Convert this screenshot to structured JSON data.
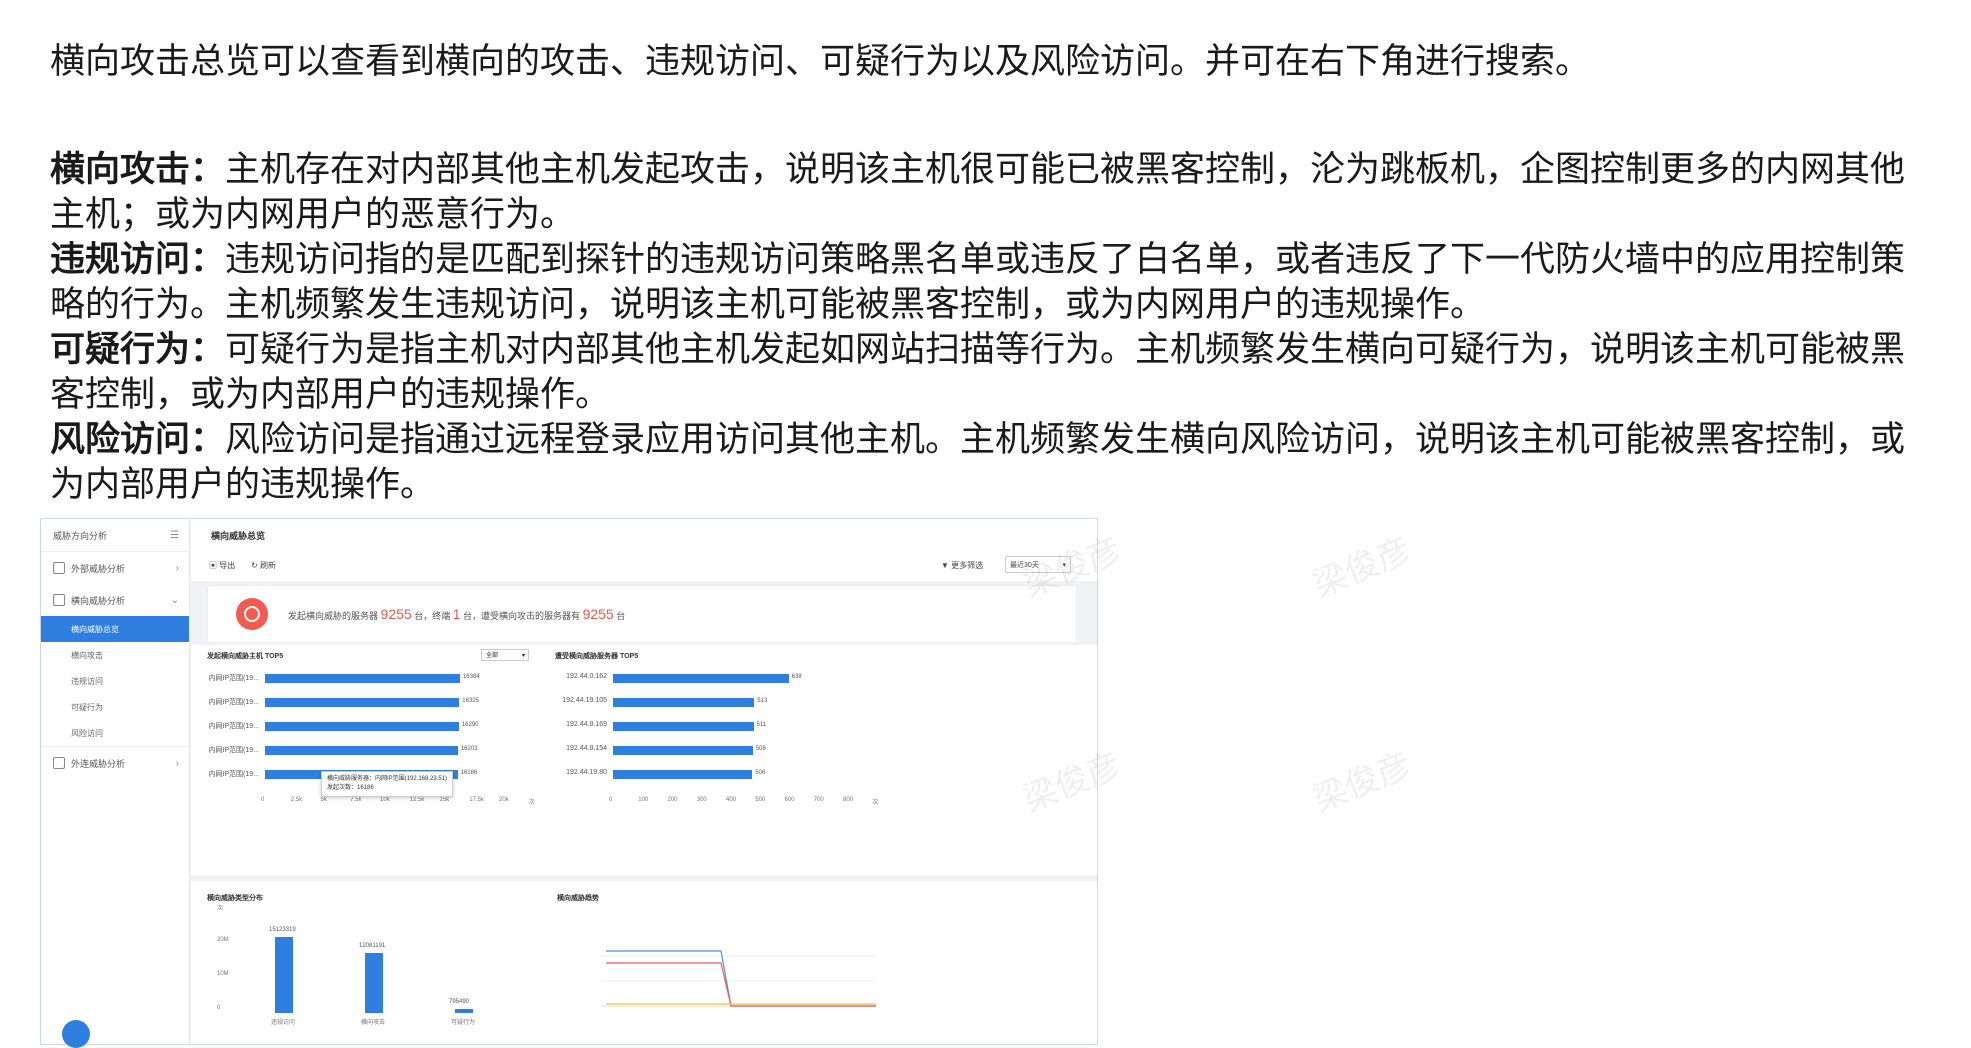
{
  "intro": "横向攻击总览可以查看到横向的攻击、违规访问、可疑行为以及风险访问。并可在右下角进行搜索。",
  "definitions": [
    {
      "term": "横向攻击",
      "sep": "：",
      "text": "主机存在对内部其他主机发起攻击，说明该主机很可能已被黑客控制，沦为跳板机，企图控制更多的内网其他主机；或为内网用户的恶意行为。"
    },
    {
      "term": "违规访问",
      "sep": "：",
      "text": "违规访问指的是匹配到探针的违规访问策略黑名单或违反了白名单，或者违反了下一代防火墙中的应用控制策略的行为。主机频繁发生违规访问，说明该主机可能被黑客控制，或为内网用户的违规操作。"
    },
    {
      "term": "可疑行为",
      "sep": "：",
      "text": "可疑行为是指主机对内部其他主机发起如网站扫描等行为。主机频繁发生横向可疑行为，说明该主机可能被黑客控制，或为内部用户的违规操作。"
    },
    {
      "term": "风险访问",
      "sep": "：",
      "text": "风险访问是指通过远程登录应用访问其他主机。主机频繁发生横向风险访问，说明该主机可能被黑客控制，或为内部用户的违规操作。"
    }
  ],
  "watermark": "梁俊彦",
  "app": {
    "sidebar": {
      "header": "威胁方向分析",
      "items": [
        {
          "label": "外部威胁分析"
        },
        {
          "label": "横向威胁分析"
        },
        {
          "label": "外连威胁分析"
        }
      ],
      "sub_items": [
        "横向威胁总览",
        "横向攻击",
        "违规访问",
        "可疑行为",
        "风险访问"
      ]
    },
    "page_title": "横向威胁总览",
    "toolbar": {
      "export": "导出",
      "refresh": "刷新",
      "more_filter": "更多筛选",
      "range": "最近30天"
    },
    "summary": {
      "p1": "发起横向威胁的服务器",
      "n1": "9255",
      "p2": "台，终端",
      "n2": "1",
      "p3": "台，遭受横向攻击的服务器有",
      "n3": "9255",
      "p4": "台"
    },
    "left_chart_title": "发起横向威胁主机 TOP5",
    "left_chart_filter": "全部",
    "right_chart_title": "遭受横向威胁服务器 TOP5",
    "bottom_left_title": "横向威胁类型分布",
    "bottom_right_title": "横向威胁趋势",
    "tooltip": {
      "line1": "横向威胁服务器：内网IP范围(192.168.23.51)",
      "line2": "发起次数：16186"
    }
  },
  "chart_data": [
    {
      "type": "bar",
      "title": "发起横向威胁主机 TOP5",
      "orientation": "horizontal",
      "categories": [
        "内网IP范围(19...",
        "内网IP范围(19...",
        "内网IP范围(19...",
        "内网IP范围(19...",
        "内网IP范围(19..."
      ],
      "values": [
        16384,
        16325,
        16290,
        16203,
        16186
      ],
      "xticks": [
        "0",
        "2.5k",
        "5k",
        "7.5k",
        "10k",
        "12.5k",
        "15k",
        "17.5k",
        "20k",
        "次"
      ],
      "xlim": [
        0,
        20000
      ]
    },
    {
      "type": "bar",
      "title": "遭受横向威胁服务器 TOP5",
      "orientation": "horizontal",
      "categories": [
        "192.44.0.162",
        "192.44.19.105",
        "192.44.9.169",
        "192.44.9.154",
        "192.44.19.80"
      ],
      "values": [
        638,
        513,
        511,
        508,
        506
      ],
      "xticks": [
        "0",
        "100",
        "200",
        "300",
        "400",
        "500",
        "600",
        "700",
        "800",
        "次"
      ],
      "xlim": [
        0,
        850
      ]
    },
    {
      "type": "bar",
      "title": "横向威胁类型分布",
      "categories": [
        "违规访问",
        "横向攻击",
        "可疑行为"
      ],
      "values": [
        15123319,
        12081191,
        795490
      ],
      "yticks": [
        "次",
        "20M",
        "10M",
        "0"
      ],
      "ylim": [
        0,
        20000000
      ]
    }
  ]
}
